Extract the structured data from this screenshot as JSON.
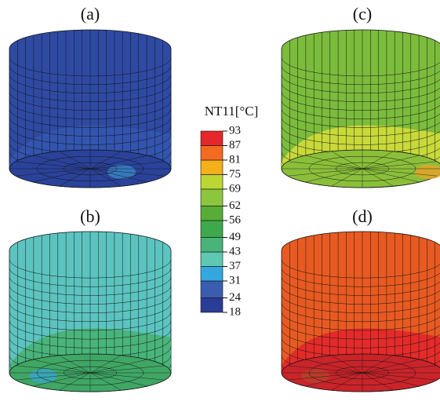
{
  "panels": [
    {
      "label": "(a)"
    },
    {
      "label": "(b)"
    },
    {
      "label": "(c)"
    },
    {
      "label": "(d)"
    }
  ],
  "legend": {
    "title": "NT11[°C]",
    "ticks": [
      18,
      24,
      31,
      37,
      43,
      49,
      56,
      62,
      69,
      75,
      81,
      87,
      93
    ],
    "colors": [
      "#2b3c96",
      "#3b5db0",
      "#34a7df",
      "#5ec8b2",
      "#49b37a",
      "#3ea94c",
      "#58ad38",
      "#8cc63e",
      "#bcd633",
      "#f3b01b",
      "#f26b21",
      "#e5262a"
    ]
  }
}
